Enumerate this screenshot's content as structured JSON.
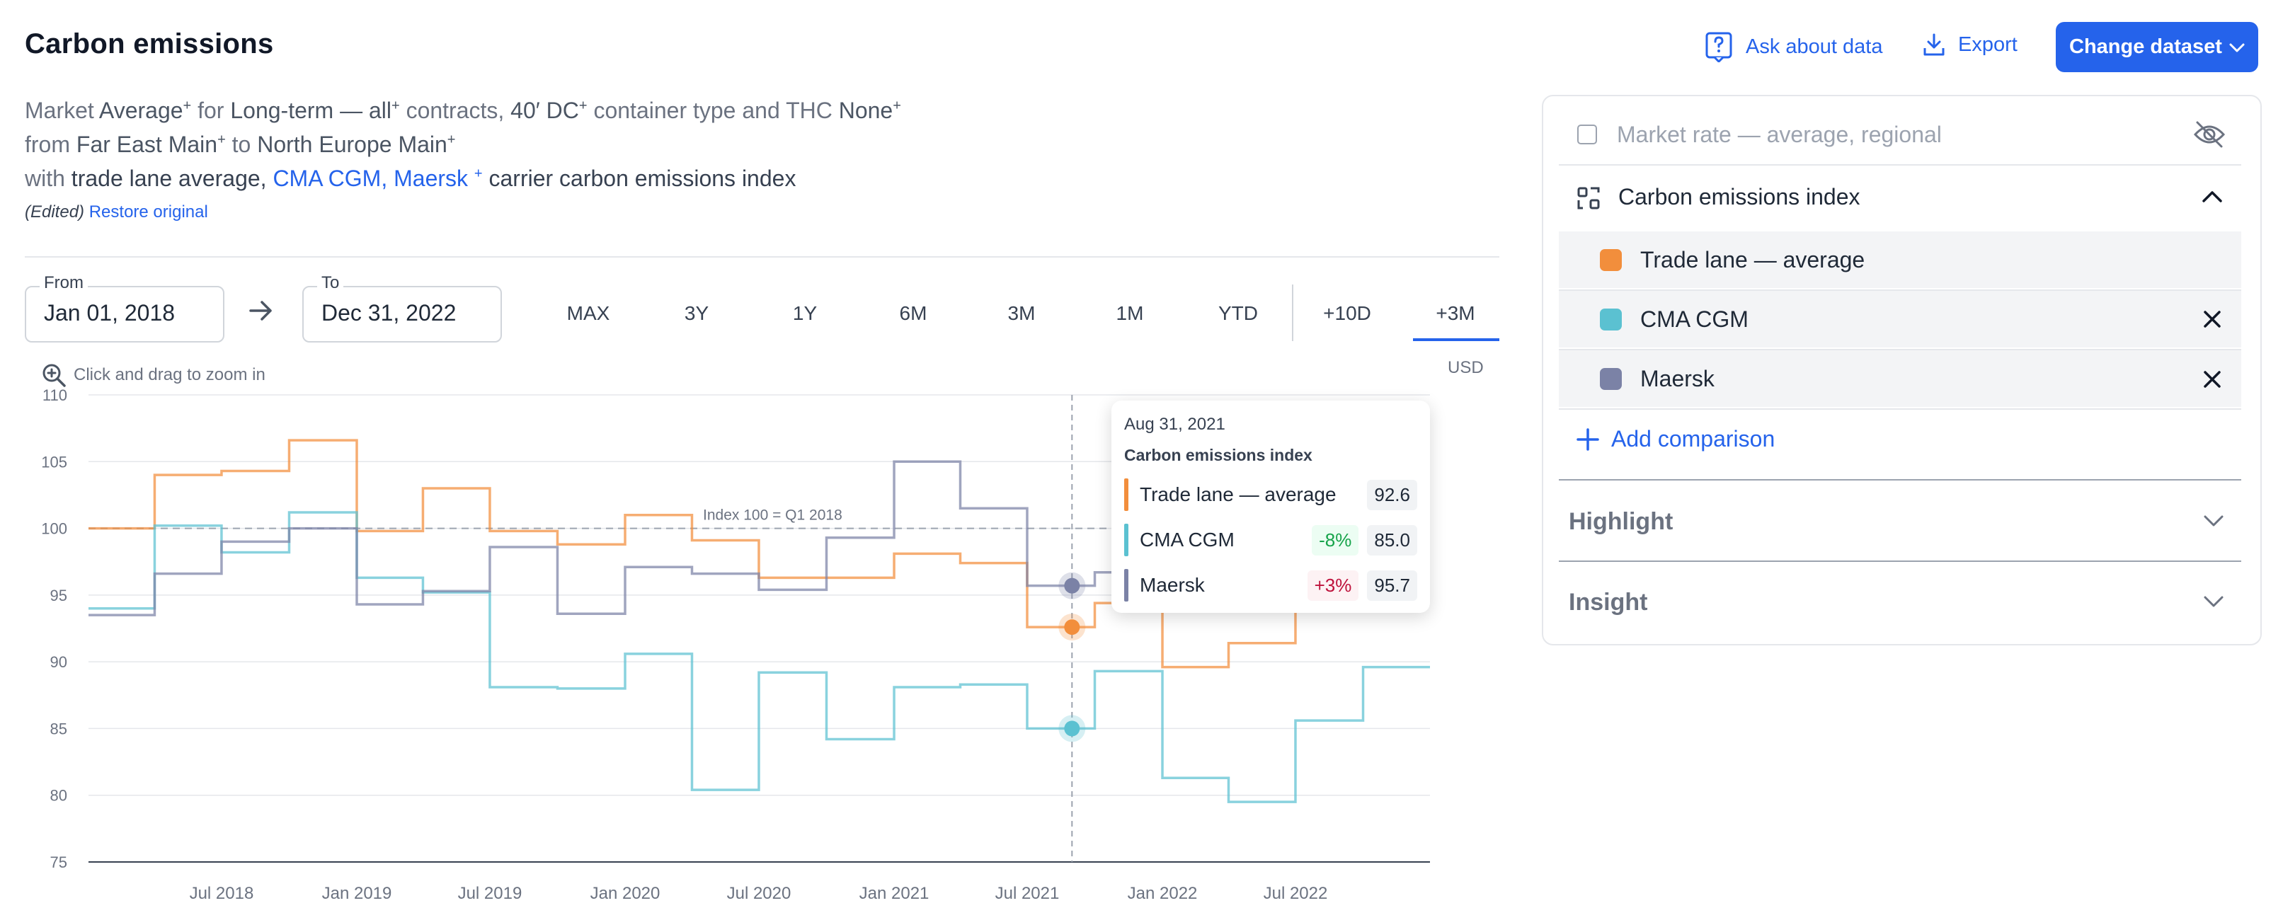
{
  "header": {
    "title": "Carbon emissions",
    "ask_label": "Ask about data",
    "export_label": "Export",
    "change_label": "Change dataset"
  },
  "query": {
    "line1": {
      "w1": "Market",
      "v1": "Average",
      "w2": "for",
      "v2": "Long-term — all",
      "w3": "contracts,",
      "v3": "40′ DC",
      "w4": "container type and THC",
      "v4": "None"
    },
    "line2": {
      "w1": "from",
      "v1": "Far East Main",
      "w2": "to",
      "v2": "North Europe Main"
    },
    "line3": {
      "w1": "with",
      "v1": "trade lane average,",
      "v2": "CMA CGM, Maersk",
      "w2": "carrier carbon emissions index"
    },
    "plus": "+",
    "edited": "(Edited)",
    "restore": "Restore original"
  },
  "date_range": {
    "from_label": "From",
    "from_value": "Jan 01, 2018",
    "to_label": "To",
    "to_value": "Dec 31, 2022",
    "arrow": "→"
  },
  "ranges": [
    "MAX",
    "3Y",
    "1Y",
    "6M",
    "3M",
    "1M",
    "YTD",
    "+10D",
    "+3M"
  ],
  "active_range": "+3M",
  "chart_hint": "Click and drag to zoom in",
  "currency": "USD",
  "chart_data": {
    "type": "line",
    "step": true,
    "ylim": [
      75,
      110
    ],
    "yticks": [
      75,
      80,
      85,
      90,
      95,
      100,
      105,
      110
    ],
    "xlim": [
      "2018-01-01",
      "2022-12-31"
    ],
    "xticks": [
      "Jul 2018",
      "Jan 2019",
      "Jul 2019",
      "Jan 2020",
      "Jul 2020",
      "Jan 2021",
      "Jul 2021",
      "Jan 2022",
      "Jul 2022"
    ],
    "reference_line": {
      "y": 100,
      "label": "Index 100 = Q1 2018"
    },
    "series": [
      {
        "name": "Trade lane — average",
        "color": "#f28e3c",
        "x": [
          "2018-01-01",
          "2018-04-01",
          "2018-07-01",
          "2018-10-01",
          "2019-01-01",
          "2019-04-01",
          "2019-07-01",
          "2019-10-01",
          "2020-01-01",
          "2020-04-01",
          "2020-07-01",
          "2020-10-01",
          "2021-01-01",
          "2021-04-01",
          "2021-07-01",
          "2021-10-01",
          "2022-01-01",
          "2022-04-01",
          "2022-07-01",
          "2022-10-01"
        ],
        "values": [
          100,
          104,
          104.3,
          106.6,
          99.8,
          103,
          99.8,
          98.8,
          101,
          99.1,
          96.3,
          96.3,
          98.1,
          97.4,
          92.6,
          94.4,
          89.6,
          91.4,
          97,
          97
        ]
      },
      {
        "name": "CMA CGM",
        "color": "#5bc1d1",
        "x": [
          "2018-01-01",
          "2018-04-01",
          "2018-07-01",
          "2018-10-01",
          "2019-01-01",
          "2019-04-01",
          "2019-07-01",
          "2019-10-01",
          "2020-01-01",
          "2020-04-01",
          "2020-07-01",
          "2020-10-01",
          "2021-01-01",
          "2021-04-01",
          "2021-07-01",
          "2021-10-01",
          "2022-01-01",
          "2022-04-01",
          "2022-07-01",
          "2022-10-01"
        ],
        "values": [
          94,
          100.2,
          98.2,
          101.2,
          96.3,
          95.2,
          88.1,
          88,
          90.6,
          80.4,
          89.2,
          84.2,
          88.1,
          88.3,
          85,
          89.3,
          81.3,
          79.5,
          85.6,
          89.6
        ]
      },
      {
        "name": "Maersk",
        "color": "#7b82a6",
        "x": [
          "2018-01-01",
          "2018-04-01",
          "2018-07-01",
          "2018-10-01",
          "2019-01-01",
          "2019-04-01",
          "2019-07-01",
          "2019-10-01",
          "2020-01-01",
          "2020-04-01",
          "2020-07-01",
          "2020-10-01",
          "2021-01-01",
          "2021-04-01",
          "2021-07-01",
          "2021-10-01"
        ],
        "values": [
          93.5,
          96.6,
          99,
          100,
          94.3,
          95.3,
          98.6,
          93.6,
          97.1,
          96.6,
          95.4,
          99.3,
          105,
          101.5,
          95.7,
          96.7
        ]
      }
    ]
  },
  "tooltip": {
    "date": "Aug 31, 2021",
    "title": "Carbon emissions index",
    "rows": [
      {
        "name": "Trade lane — average",
        "pct": "",
        "value": "92.6",
        "color": "#f28e3c"
      },
      {
        "name": "CMA CGM",
        "pct": "-8%",
        "value": "85.0",
        "color": "#5bc1d1"
      },
      {
        "name": "Maersk",
        "pct": "+3%",
        "value": "95.7",
        "color": "#7b82a6"
      }
    ]
  },
  "panel": {
    "market_rate_label": "Market rate — average, regional",
    "carbon_label": "Carbon emissions index",
    "series": [
      {
        "name": "Trade lane — average",
        "color": "#f28e3c",
        "removable": false
      },
      {
        "name": "CMA CGM",
        "color": "#5bc1d1",
        "removable": true
      },
      {
        "name": "Maersk",
        "color": "#7b82a6",
        "removable": true
      }
    ],
    "add_comparison": "Add comparison",
    "highlight": "Highlight",
    "insight": "Insight"
  }
}
